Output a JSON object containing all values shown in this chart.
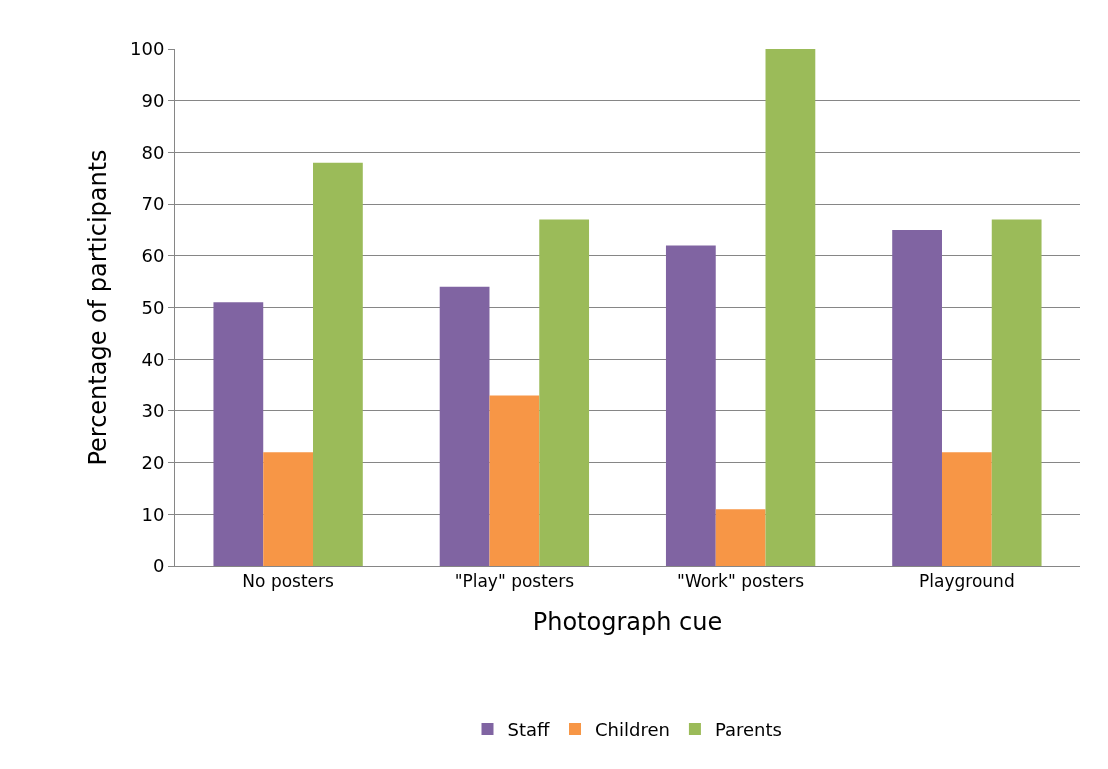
{
  "chart_data": {
    "type": "bar",
    "xlabel": "Photograph cue",
    "ylabel": "Percentage of participants",
    "categories": [
      "No posters",
      "\"Play\" posters",
      "\"Work\" posters",
      "Playground"
    ],
    "series": [
      {
        "name": "Staff",
        "color": "#8064a2",
        "values": [
          51,
          54,
          62,
          65
        ]
      },
      {
        "name": "Children",
        "color": "#f79646",
        "values": [
          22,
          33,
          11,
          22
        ]
      },
      {
        "name": "Parents",
        "color": "#9bbb59",
        "values": [
          78,
          67,
          100,
          67
        ]
      }
    ],
    "ylim": [
      0,
      100
    ],
    "yticks": [
      0,
      10,
      20,
      30,
      40,
      50,
      60,
      70,
      80,
      90,
      100
    ],
    "grid": "y",
    "legend": "bottom"
  }
}
